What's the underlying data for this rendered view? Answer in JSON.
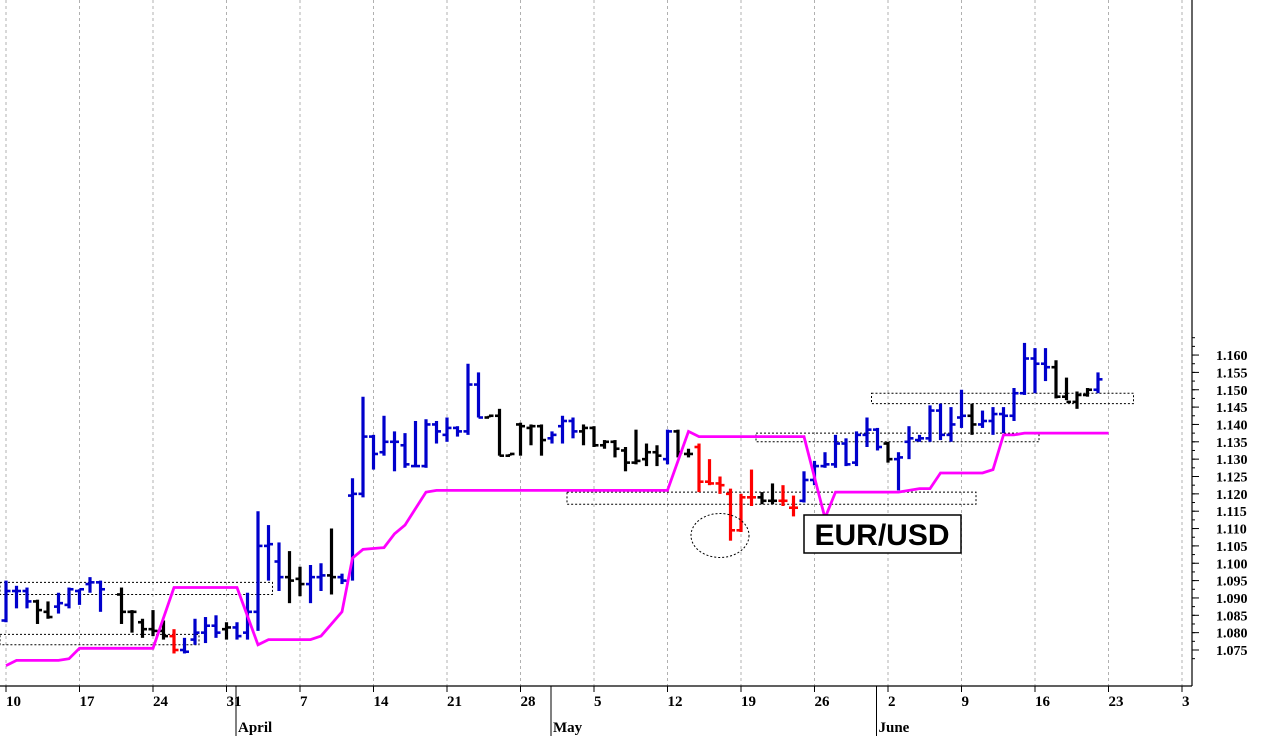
{
  "chart_data": {
    "type": "ohlc",
    "title": "EUR/USD",
    "ylim": [
      1.07,
      1.165
    ],
    "y_ticks": [
      "1.075",
      "1.080",
      "1.085",
      "1.090",
      "1.095",
      "1.100",
      "1.105",
      "1.110",
      "1.115",
      "1.120",
      "1.125",
      "1.130",
      "1.135",
      "1.140",
      "1.145",
      "1.150",
      "1.155",
      "1.160"
    ],
    "x_ticks": [
      {
        "label": "10",
        "day": 0
      },
      {
        "label": "17",
        "day": 7
      },
      {
        "label": "24",
        "day": 14
      },
      {
        "label": "31",
        "day": 21
      },
      {
        "label": "7",
        "day": 28
      },
      {
        "label": "14",
        "day": 35
      },
      {
        "label": "21",
        "day": 42
      },
      {
        "label": "28",
        "day": 49
      },
      {
        "label": "5",
        "day": 56
      },
      {
        "label": "12",
        "day": 63
      },
      {
        "label": "19",
        "day": 70
      },
      {
        "label": "26",
        "day": 77
      },
      {
        "label": "2",
        "day": 84
      },
      {
        "label": "9",
        "day": 91
      },
      {
        "label": "16",
        "day": 98
      },
      {
        "label": "23",
        "day": 105
      },
      {
        "label": "3",
        "day": 112
      }
    ],
    "months": [
      {
        "label": "April",
        "day": 22
      },
      {
        "label": "May",
        "day": 52
      },
      {
        "label": "June",
        "day": 83
      }
    ],
    "grid": "vertical dotted",
    "colors": {
      "up": "#0000cc",
      "down": "#000000",
      "highlight": "#ff0000",
      "line": "#ff00ff"
    },
    "bars": [
      {
        "day": 0,
        "o": 1.0835,
        "h": 1.095,
        "l": 1.083,
        "c": 1.092,
        "color": "up"
      },
      {
        "day": 1,
        "o": 1.092,
        "h": 1.0935,
        "l": 1.087,
        "c": 1.092,
        "color": "up"
      },
      {
        "day": 2,
        "o": 1.092,
        "h": 1.093,
        "l": 1.087,
        "c": 1.089,
        "color": "up"
      },
      {
        "day": 3,
        "o": 1.089,
        "h": 1.0895,
        "l": 1.0825,
        "c": 1.0865,
        "color": "down"
      },
      {
        "day": 4,
        "o": 1.086,
        "h": 1.089,
        "l": 1.084,
        "c": 1.0845,
        "color": "down"
      },
      {
        "day": 5,
        "o": 1.0875,
        "h": 1.0915,
        "l": 1.0855,
        "c": 1.0885,
        "color": "up"
      },
      {
        "day": 6,
        "o": 1.088,
        "h": 1.093,
        "l": 1.087,
        "c": 1.0925,
        "color": "up"
      },
      {
        "day": 7,
        "o": 1.092,
        "h": 1.0925,
        "l": 1.088,
        "c": 1.0925,
        "color": "up"
      },
      {
        "day": 8,
        "o": 1.094,
        "h": 1.096,
        "l": 1.0915,
        "c": 1.0945,
        "color": "up"
      },
      {
        "day": 9,
        "o": 1.0945,
        "h": 1.095,
        "l": 1.086,
        "c": 1.0925,
        "color": "up"
      },
      {
        "day": 11,
        "o": 1.091,
        "h": 1.093,
        "l": 1.0825,
        "c": 1.086,
        "color": "down"
      },
      {
        "day": 12,
        "o": 1.086,
        "h": 1.0865,
        "l": 1.08,
        "c": 1.086,
        "color": "down"
      },
      {
        "day": 13,
        "o": 1.083,
        "h": 1.084,
        "l": 1.0785,
        "c": 1.081,
        "color": "down"
      },
      {
        "day": 14,
        "o": 1.081,
        "h": 1.0865,
        "l": 1.079,
        "c": 1.0805,
        "color": "down"
      },
      {
        "day": 15,
        "o": 1.0805,
        "h": 1.0835,
        "l": 1.078,
        "c": 1.079,
        "color": "down"
      },
      {
        "day": 16,
        "o": 1.079,
        "h": 1.081,
        "l": 1.074,
        "c": 1.075,
        "color": "highlight"
      },
      {
        "day": 17,
        "o": 1.075,
        "h": 1.0785,
        "l": 1.074,
        "c": 1.0745,
        "color": "up"
      },
      {
        "day": 18,
        "o": 1.078,
        "h": 1.084,
        "l": 1.0765,
        "c": 1.08,
        "color": "up"
      },
      {
        "day": 19,
        "o": 1.08,
        "h": 1.0845,
        "l": 1.077,
        "c": 1.082,
        "color": "up"
      },
      {
        "day": 20,
        "o": 1.082,
        "h": 1.085,
        "l": 1.0785,
        "c": 1.08,
        "color": "up"
      },
      {
        "day": 21,
        "o": 1.081,
        "h": 1.083,
        "l": 1.078,
        "c": 1.0815,
        "color": "down"
      },
      {
        "day": 22,
        "o": 1.0815,
        "h": 1.083,
        "l": 1.078,
        "c": 1.079,
        "color": "up"
      },
      {
        "day": 23,
        "o": 1.08,
        "h": 1.0915,
        "l": 1.078,
        "c": 1.086,
        "color": "up"
      },
      {
        "day": 24,
        "o": 1.086,
        "h": 1.115,
        "l": 1.0805,
        "c": 1.105,
        "color": "up"
      },
      {
        "day": 25,
        "o": 1.105,
        "h": 1.111,
        "l": 1.095,
        "c": 1.1055,
        "color": "up"
      },
      {
        "day": 26,
        "o": 1.1005,
        "h": 1.106,
        "l": 1.092,
        "c": 1.096,
        "color": "up"
      },
      {
        "day": 27,
        "o": 1.096,
        "h": 1.1035,
        "l": 1.0885,
        "c": 1.095,
        "color": "down"
      },
      {
        "day": 28,
        "o": 1.0955,
        "h": 1.099,
        "l": 1.0905,
        "c": 1.094,
        "color": "down"
      },
      {
        "day": 29,
        "o": 1.094,
        "h": 1.0995,
        "l": 1.0885,
        "c": 1.096,
        "color": "up"
      },
      {
        "day": 30,
        "o": 1.096,
        "h": 1.1,
        "l": 1.092,
        "c": 1.0965,
        "color": "up"
      },
      {
        "day": 31,
        "o": 1.0965,
        "h": 1.11,
        "l": 1.091,
        "c": 1.096,
        "color": "down"
      },
      {
        "day": 32,
        "o": 1.096,
        "h": 1.097,
        "l": 1.094,
        "c": 1.095,
        "color": "up"
      },
      {
        "day": 33,
        "o": 1.1195,
        "h": 1.1245,
        "l": 1.095,
        "c": 1.12,
        "color": "up"
      },
      {
        "day": 34,
        "o": 1.12,
        "h": 1.148,
        "l": 1.119,
        "c": 1.1365,
        "color": "up"
      },
      {
        "day": 35,
        "o": 1.1365,
        "h": 1.137,
        "l": 1.127,
        "c": 1.1315,
        "color": "up"
      },
      {
        "day": 36,
        "o": 1.132,
        "h": 1.1425,
        "l": 1.131,
        "c": 1.135,
        "color": "up"
      },
      {
        "day": 37,
        "o": 1.135,
        "h": 1.138,
        "l": 1.1265,
        "c": 1.135,
        "color": "up"
      },
      {
        "day": 38,
        "o": 1.134,
        "h": 1.1375,
        "l": 1.1275,
        "c": 1.1285,
        "color": "up"
      },
      {
        "day": 39,
        "o": 1.128,
        "h": 1.141,
        "l": 1.128,
        "c": 1.128,
        "color": "up"
      },
      {
        "day": 40,
        "o": 1.128,
        "h": 1.1415,
        "l": 1.1275,
        "c": 1.14,
        "color": "up"
      },
      {
        "day": 41,
        "o": 1.14,
        "h": 1.141,
        "l": 1.1345,
        "c": 1.138,
        "color": "up"
      },
      {
        "day": 42,
        "o": 1.137,
        "h": 1.142,
        "l": 1.135,
        "c": 1.139,
        "color": "up"
      },
      {
        "day": 43,
        "o": 1.139,
        "h": 1.1395,
        "l": 1.1365,
        "c": 1.138,
        "color": "up"
      },
      {
        "day": 44,
        "o": 1.138,
        "h": 1.1575,
        "l": 1.137,
        "c": 1.1515,
        "color": "up"
      },
      {
        "day": 45,
        "o": 1.1515,
        "h": 1.155,
        "l": 1.142,
        "c": 1.142,
        "color": "up"
      },
      {
        "day": 46,
        "o": 1.142,
        "h": 1.1425,
        "l": 1.142,
        "c": 1.1425,
        "color": "down"
      },
      {
        "day": 47,
        "o": 1.1425,
        "h": 1.1445,
        "l": 1.131,
        "c": 1.131,
        "color": "down"
      },
      {
        "day": 48,
        "o": 1.131,
        "h": 1.1315,
        "l": 1.131,
        "c": 1.1315,
        "color": "down"
      },
      {
        "day": 49,
        "o": 1.14,
        "h": 1.1405,
        "l": 1.131,
        "c": 1.1395,
        "color": "down"
      },
      {
        "day": 50,
        "o": 1.139,
        "h": 1.14,
        "l": 1.134,
        "c": 1.1395,
        "color": "down"
      },
      {
        "day": 51,
        "o": 1.1395,
        "h": 1.14,
        "l": 1.131,
        "c": 1.1355,
        "color": "down"
      },
      {
        "day": 52,
        "o": 1.136,
        "h": 1.138,
        "l": 1.1345,
        "c": 1.137,
        "color": "up"
      },
      {
        "day": 53,
        "o": 1.1395,
        "h": 1.1425,
        "l": 1.1345,
        "c": 1.141,
        "color": "up"
      },
      {
        "day": 54,
        "o": 1.141,
        "h": 1.142,
        "l": 1.136,
        "c": 1.138,
        "color": "up"
      },
      {
        "day": 55,
        "o": 1.138,
        "h": 1.14,
        "l": 1.134,
        "c": 1.139,
        "color": "down"
      },
      {
        "day": 56,
        "o": 1.139,
        "h": 1.1395,
        "l": 1.1335,
        "c": 1.134,
        "color": "down"
      },
      {
        "day": 57,
        "o": 1.134,
        "h": 1.1355,
        "l": 1.133,
        "c": 1.135,
        "color": "down"
      },
      {
        "day": 58,
        "o": 1.135,
        "h": 1.1355,
        "l": 1.1305,
        "c": 1.133,
        "color": "down"
      },
      {
        "day": 59,
        "o": 1.1325,
        "h": 1.1335,
        "l": 1.1265,
        "c": 1.129,
        "color": "down"
      },
      {
        "day": 60,
        "o": 1.129,
        "h": 1.1385,
        "l": 1.1285,
        "c": 1.1295,
        "color": "down"
      },
      {
        "day": 61,
        "o": 1.13,
        "h": 1.1345,
        "l": 1.128,
        "c": 1.132,
        "color": "down"
      },
      {
        "day": 62,
        "o": 1.132,
        "h": 1.134,
        "l": 1.128,
        "c": 1.131,
        "color": "down"
      },
      {
        "day": 63,
        "o": 1.13,
        "h": 1.1385,
        "l": 1.1285,
        "c": 1.138,
        "color": "up"
      },
      {
        "day": 64,
        "o": 1.138,
        "h": 1.1385,
        "l": 1.1305,
        "c": 1.132,
        "color": "down"
      },
      {
        "day": 65,
        "o": 1.1315,
        "h": 1.133,
        "l": 1.1305,
        "c": 1.1315,
        "color": "down"
      },
      {
        "day": 66,
        "o": 1.1335,
        "h": 1.1345,
        "l": 1.1205,
        "c": 1.1235,
        "color": "highlight"
      },
      {
        "day": 67,
        "o": 1.1235,
        "h": 1.13,
        "l": 1.1225,
        "c": 1.123,
        "color": "highlight"
      },
      {
        "day": 68,
        "o": 1.123,
        "h": 1.125,
        "l": 1.12,
        "c": 1.1225,
        "color": "highlight"
      },
      {
        "day": 69,
        "o": 1.12,
        "h": 1.1215,
        "l": 1.1065,
        "c": 1.1095,
        "color": "highlight"
      },
      {
        "day": 70,
        "o": 1.1095,
        "h": 1.12,
        "l": 1.109,
        "c": 1.119,
        "color": "highlight"
      },
      {
        "day": 71,
        "o": 1.119,
        "h": 1.127,
        "l": 1.1165,
        "c": 1.119,
        "color": "highlight"
      },
      {
        "day": 72,
        "o": 1.119,
        "h": 1.1205,
        "l": 1.117,
        "c": 1.118,
        "color": "down"
      },
      {
        "day": 73,
        "o": 1.118,
        "h": 1.123,
        "l": 1.117,
        "c": 1.118,
        "color": "down"
      },
      {
        "day": 74,
        "o": 1.118,
        "h": 1.1225,
        "l": 1.1165,
        "c": 1.118,
        "color": "highlight"
      },
      {
        "day": 75,
        "o": 1.116,
        "h": 1.1195,
        "l": 1.1135,
        "c": 1.116,
        "color": "highlight"
      },
      {
        "day": 76,
        "o": 1.118,
        "h": 1.1265,
        "l": 1.1175,
        "c": 1.124,
        "color": "up"
      },
      {
        "day": 77,
        "o": 1.124,
        "h": 1.1295,
        "l": 1.1225,
        "c": 1.128,
        "color": "up"
      },
      {
        "day": 78,
        "o": 1.128,
        "h": 1.132,
        "l": 1.1275,
        "c": 1.1285,
        "color": "up"
      },
      {
        "day": 79,
        "o": 1.1285,
        "h": 1.137,
        "l": 1.1275,
        "c": 1.1345,
        "color": "up"
      },
      {
        "day": 80,
        "o": 1.1345,
        "h": 1.136,
        "l": 1.128,
        "c": 1.1285,
        "color": "up"
      },
      {
        "day": 81,
        "o": 1.129,
        "h": 1.138,
        "l": 1.128,
        "c": 1.137,
        "color": "up"
      },
      {
        "day": 82,
        "o": 1.137,
        "h": 1.142,
        "l": 1.1335,
        "c": 1.1385,
        "color": "up"
      },
      {
        "day": 83,
        "o": 1.1385,
        "h": 1.139,
        "l": 1.1325,
        "c": 1.1335,
        "color": "up"
      },
      {
        "day": 84,
        "o": 1.1345,
        "h": 1.135,
        "l": 1.129,
        "c": 1.13,
        "color": "down"
      },
      {
        "day": 85,
        "o": 1.13,
        "h": 1.132,
        "l": 1.121,
        "c": 1.1305,
        "color": "up"
      },
      {
        "day": 86,
        "o": 1.135,
        "h": 1.1395,
        "l": 1.13,
        "c": 1.136,
        "color": "up"
      },
      {
        "day": 87,
        "o": 1.1355,
        "h": 1.137,
        "l": 1.135,
        "c": 1.136,
        "color": "up"
      },
      {
        "day": 88,
        "o": 1.136,
        "h": 1.1455,
        "l": 1.135,
        "c": 1.144,
        "color": "up"
      },
      {
        "day": 89,
        "o": 1.144,
        "h": 1.146,
        "l": 1.1355,
        "c": 1.137,
        "color": "up"
      },
      {
        "day": 90,
        "o": 1.137,
        "h": 1.145,
        "l": 1.135,
        "c": 1.14,
        "color": "up"
      },
      {
        "day": 91,
        "o": 1.142,
        "h": 1.15,
        "l": 1.139,
        "c": 1.1425,
        "color": "up"
      },
      {
        "day": 92,
        "o": 1.1425,
        "h": 1.146,
        "l": 1.137,
        "c": 1.14,
        "color": "down"
      },
      {
        "day": 93,
        "o": 1.14,
        "h": 1.144,
        "l": 1.139,
        "c": 1.141,
        "color": "up"
      },
      {
        "day": 94,
        "o": 1.141,
        "h": 1.145,
        "l": 1.137,
        "c": 1.143,
        "color": "up"
      },
      {
        "day": 95,
        "o": 1.143,
        "h": 1.145,
        "l": 1.1375,
        "c": 1.1425,
        "color": "up"
      },
      {
        "day": 96,
        "o": 1.1425,
        "h": 1.1505,
        "l": 1.141,
        "c": 1.149,
        "color": "up"
      },
      {
        "day": 97,
        "o": 1.149,
        "h": 1.1635,
        "l": 1.1485,
        "c": 1.159,
        "color": "up"
      },
      {
        "day": 98,
        "o": 1.159,
        "h": 1.162,
        "l": 1.149,
        "c": 1.1575,
        "color": "up"
      },
      {
        "day": 99,
        "o": 1.1575,
        "h": 1.162,
        "l": 1.1525,
        "c": 1.1565,
        "color": "up"
      },
      {
        "day": 100,
        "o": 1.1565,
        "h": 1.1585,
        "l": 1.1475,
        "c": 1.148,
        "color": "down"
      },
      {
        "day": 101,
        "o": 1.148,
        "h": 1.1535,
        "l": 1.147,
        "c": 1.1465,
        "color": "down"
      },
      {
        "day": 102,
        "o": 1.1465,
        "h": 1.1495,
        "l": 1.1445,
        "c": 1.1485,
        "color": "down"
      },
      {
        "day": 103,
        "o": 1.1485,
        "h": 1.1505,
        "l": 1.148,
        "c": 1.15,
        "color": "down"
      },
      {
        "day": 104,
        "o": 1.15,
        "h": 1.155,
        "l": 1.149,
        "c": 1.153,
        "color": "up"
      }
    ],
    "magenta_line": [
      [
        0,
        1.0705
      ],
      [
        1,
        1.072
      ],
      [
        5,
        1.072
      ],
      [
        6,
        1.0725
      ],
      [
        7,
        1.0755
      ],
      [
        14,
        1.0755
      ],
      [
        16,
        1.093
      ],
      [
        22,
        1.093
      ],
      [
        24,
        1.0765
      ],
      [
        25,
        1.078
      ],
      [
        29,
        1.078
      ],
      [
        30,
        1.079
      ],
      [
        32,
        1.086
      ],
      [
        33,
        1.1015
      ],
      [
        34,
        1.104
      ],
      [
        36,
        1.1045
      ],
      [
        37,
        1.1085
      ],
      [
        38,
        1.111
      ],
      [
        40,
        1.1205
      ],
      [
        41,
        1.121
      ],
      [
        63,
        1.121
      ],
      [
        65,
        1.138
      ],
      [
        66,
        1.1365
      ],
      [
        75,
        1.1365
      ],
      [
        76,
        1.1365
      ],
      [
        78,
        1.113
      ],
      [
        79,
        1.1205
      ],
      [
        85,
        1.1205
      ],
      [
        87,
        1.1215
      ],
      [
        88,
        1.1215
      ],
      [
        89,
        1.126
      ],
      [
        93,
        1.126
      ],
      [
        94,
        1.127
      ],
      [
        95,
        1.137
      ],
      [
        96,
        1.137
      ],
      [
        97,
        1.1375
      ],
      [
        105,
        1.1375
      ]
    ],
    "boxes": [
      {
        "day0": 0,
        "day1": 25,
        "y0": 1.091,
        "y1": 1.0945
      },
      {
        "day0": 0,
        "day1": 18,
        "y0": 1.0765,
        "y1": 1.0795
      },
      {
        "day0": 54,
        "day1": 92,
        "y0": 1.117,
        "y1": 1.1205
      },
      {
        "day0": 72,
        "day1": 98,
        "y0": 1.135,
        "y1": 1.1375
      },
      {
        "day0": 83,
        "day1": 107,
        "y0": 1.146,
        "y1": 1.149
      }
    ],
    "ellipse": {
      "day": 68,
      "y": 1.108
    }
  }
}
